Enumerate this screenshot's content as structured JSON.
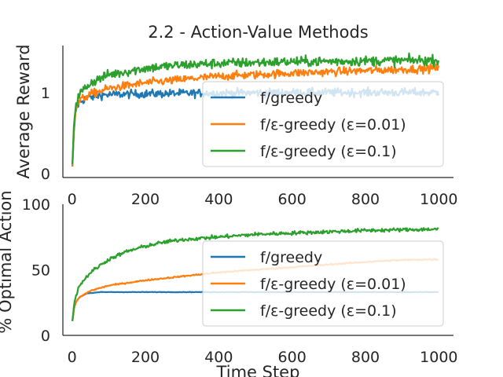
{
  "colors": {
    "greedy": "#1f77b4",
    "eps001": "#ff7f0e",
    "eps01": "#2ca02c",
    "axis": "#262626"
  },
  "chart_data": [
    {
      "type": "line",
      "title": "2.2 - Action-Value Methods",
      "xlabel": "",
      "ylabel": "Average Reward",
      "xlim": [
        -25,
        1040
      ],
      "ylim": [
        -0.05,
        1.58
      ],
      "xticks": [
        0,
        200,
        400,
        600,
        800,
        1000
      ],
      "xtick_labels": [
        "0",
        "200",
        "400",
        "600",
        "800",
        "1000"
      ],
      "yticks": [
        0,
        1
      ],
      "ytick_labels": [
        "0",
        "1"
      ],
      "grid": false,
      "legend_position": "center-right",
      "series": [
        {
          "name": "f/greedy",
          "color": "#1f77b4",
          "noise": 0.05,
          "points": [
            [
              1,
              0.08
            ],
            [
              5,
              0.5
            ],
            [
              10,
              0.78
            ],
            [
              20,
              0.88
            ],
            [
              40,
              0.93
            ],
            [
              80,
              0.97
            ],
            [
              150,
              0.98
            ],
            [
              300,
              0.99
            ],
            [
              600,
              1.0
            ],
            [
              1000,
              1.0
            ]
          ]
        },
        {
          "name": "f/ε-greedy (ε=0.01)",
          "color": "#ff7f0e",
          "noise": 0.05,
          "points": [
            [
              1,
              0.1
            ],
            [
              5,
              0.55
            ],
            [
              10,
              0.8
            ],
            [
              20,
              0.9
            ],
            [
              50,
              0.98
            ],
            [
              100,
              1.05
            ],
            [
              200,
              1.12
            ],
            [
              300,
              1.16
            ],
            [
              400,
              1.2
            ],
            [
              600,
              1.24
            ],
            [
              800,
              1.27
            ],
            [
              1000,
              1.3
            ]
          ]
        },
        {
          "name": "f/ε-greedy (ε=0.1)",
          "color": "#2ca02c",
          "noise": 0.06,
          "points": [
            [
              1,
              0.1
            ],
            [
              5,
              0.6
            ],
            [
              10,
              0.85
            ],
            [
              20,
              0.98
            ],
            [
              50,
              1.12
            ],
            [
              100,
              1.22
            ],
            [
              200,
              1.3
            ],
            [
              300,
              1.34
            ],
            [
              400,
              1.36
            ],
            [
              600,
              1.38
            ],
            [
              800,
              1.39
            ],
            [
              1000,
              1.4
            ]
          ]
        }
      ]
    },
    {
      "type": "line",
      "title": "",
      "xlabel": "Time Step",
      "ylabel": "% Optimal Action",
      "xlim": [
        -25,
        1040
      ],
      "ylim": [
        0,
        100
      ],
      "xticks": [
        0,
        200,
        400,
        600,
        800,
        1000
      ],
      "xtick_labels": [
        "0",
        "200",
        "400",
        "600",
        "800",
        "1000"
      ],
      "yticks": [
        0,
        50,
        100
      ],
      "ytick_labels": [
        "0",
        "50",
        "100"
      ],
      "grid": false,
      "legend_position": "center-right",
      "series": [
        {
          "name": "f/greedy",
          "color": "#1f77b4",
          "noise": 0.2,
          "points": [
            [
              1,
              11
            ],
            [
              5,
              20
            ],
            [
              10,
              25
            ],
            [
              20,
              29
            ],
            [
              40,
              32
            ],
            [
              80,
              33
            ],
            [
              1000,
              33
            ]
          ]
        },
        {
          "name": "f/ε-greedy (ε=0.01)",
          "color": "#ff7f0e",
          "noise": 0.5,
          "points": [
            [
              1,
              11
            ],
            [
              5,
              20
            ],
            [
              10,
              25
            ],
            [
              20,
              29
            ],
            [
              50,
              34
            ],
            [
              100,
              38
            ],
            [
              200,
              42
            ],
            [
              300,
              45
            ],
            [
              400,
              48
            ],
            [
              500,
              50
            ],
            [
              600,
              52
            ],
            [
              700,
              54
            ],
            [
              800,
              56
            ],
            [
              900,
              57.5
            ],
            [
              1000,
              58
            ]
          ]
        },
        {
          "name": "f/ε-greedy (ε=0.1)",
          "color": "#2ca02c",
          "noise": 1.4,
          "points": [
            [
              1,
              11
            ],
            [
              5,
              22
            ],
            [
              10,
              30
            ],
            [
              20,
              38
            ],
            [
              50,
              48
            ],
            [
              100,
              58
            ],
            [
              150,
              64
            ],
            [
              200,
              68
            ],
            [
              250,
              71
            ],
            [
              300,
              73
            ],
            [
              400,
              75
            ],
            [
              500,
              77
            ],
            [
              600,
              78
            ],
            [
              700,
              79
            ],
            [
              800,
              80
            ],
            [
              900,
              80.5
            ],
            [
              1000,
              81
            ]
          ]
        }
      ]
    }
  ]
}
